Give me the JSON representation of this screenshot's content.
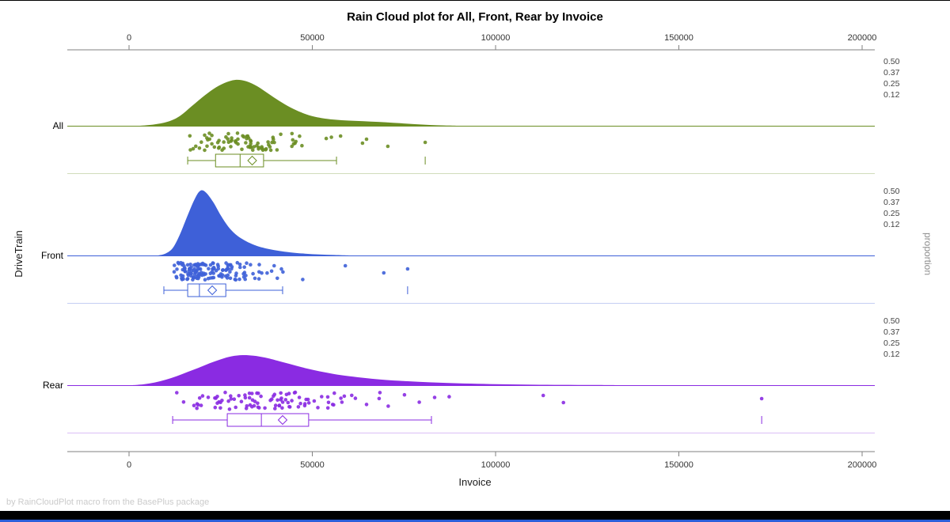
{
  "title": "Rain Cloud plot for All, Front, Rear by Invoice",
  "footer": "by RainCloudPlot macro from the BasePlus package",
  "window": {
    "background": "#FFFFFF",
    "bottom_bar_color": "#000000",
    "bottom_edge_color": "#2B5FD9"
  },
  "chart_data": {
    "type": "raincloud",
    "title": "Rain Cloud plot for All, Front, Rear by Invoice",
    "x_axis": {
      "label": "Invoice",
      "min": 0,
      "max": 200000,
      "ticks": [
        0,
        50000,
        100000,
        150000,
        200000
      ]
    },
    "y_axis": {
      "label": "DriveTrain",
      "categories": [
        "All",
        "Front",
        "Rear"
      ]
    },
    "proportion_axis": {
      "label": "proportion",
      "tick_labels": [
        "0.50",
        "0.37",
        "0.25",
        "0.12"
      ]
    },
    "axis_color": "#828282",
    "tick_label_color": "#333333",
    "legend": "none",
    "grid": false,
    "groups": [
      {
        "name": "All",
        "color": "#6B8E23",
        "n_points": 85,
        "seed": 7,
        "rain_range": [
          16000,
          57000
        ],
        "rain_outliers": [
          57700,
          63700,
          64800,
          70600,
          80800
        ],
        "box": {
          "whisker_low": 16000,
          "q1": 23600,
          "median": 30300,
          "q3": 36700,
          "whisker_high": 56600,
          "mean": 33600,
          "far_outliers": [
            80800
          ]
        },
        "density": [
          [
            3000,
            0
          ],
          [
            7000,
            0.03
          ],
          [
            11000,
            0.1
          ],
          [
            14000,
            0.22
          ],
          [
            17000,
            0.42
          ],
          [
            20000,
            0.62
          ],
          [
            23000,
            0.8
          ],
          [
            26000,
            0.93
          ],
          [
            29000,
            1.0
          ],
          [
            32000,
            0.97
          ],
          [
            35000,
            0.86
          ],
          [
            38000,
            0.7
          ],
          [
            41000,
            0.54
          ],
          [
            44000,
            0.4
          ],
          [
            47000,
            0.29
          ],
          [
            50000,
            0.21
          ],
          [
            54000,
            0.15
          ],
          [
            58000,
            0.12
          ],
          [
            62000,
            0.105
          ],
          [
            66000,
            0.09
          ],
          [
            70000,
            0.075
          ],
          [
            74000,
            0.055
          ],
          [
            78000,
            0.035
          ],
          [
            82000,
            0.018
          ],
          [
            86000,
            0.007
          ],
          [
            90000,
            0
          ]
        ]
      },
      {
        "name": "Front",
        "color": "#3E60D8",
        "n_points": 150,
        "seed": 13,
        "rain_range": [
          9500,
          49000
        ],
        "rain_outliers": [
          59000,
          69500,
          76000
        ],
        "box": {
          "whisker_low": 9500,
          "q1": 16000,
          "median": 19200,
          "q3": 26400,
          "whisker_high": 41900,
          "mean": 22700,
          "far_outliers": [
            76000
          ]
        },
        "density": [
          [
            8000,
            0
          ],
          [
            10000,
            0.03
          ],
          [
            12000,
            0.12
          ],
          [
            14000,
            0.34
          ],
          [
            16000,
            0.62
          ],
          [
            18000,
            0.88
          ],
          [
            19500,
            1.0
          ],
          [
            21000,
            0.97
          ],
          [
            23000,
            0.82
          ],
          [
            25000,
            0.62
          ],
          [
            27000,
            0.45
          ],
          [
            29000,
            0.33
          ],
          [
            31000,
            0.25
          ],
          [
            33000,
            0.19
          ],
          [
            35000,
            0.145
          ],
          [
            38000,
            0.1
          ],
          [
            41000,
            0.07
          ],
          [
            44000,
            0.048
          ],
          [
            48000,
            0.028
          ],
          [
            52000,
            0.015
          ],
          [
            56000,
            0.007
          ],
          [
            60000,
            0
          ]
        ]
      },
      {
        "name": "Rear",
        "color": "#8A2BE2",
        "n_points": 100,
        "seed": 21,
        "rain_range": [
          11500,
          89000
        ],
        "rain_outliers": [
          113000,
          118500,
          172600
        ],
        "box": {
          "whisker_low": 11900,
          "q1": 26800,
          "median": 36100,
          "q3": 49000,
          "whisker_high": 82500,
          "mean": 41900,
          "far_outliers": [
            172600
          ]
        },
        "density": [
          [
            1000,
            0
          ],
          [
            4000,
            0.03
          ],
          [
            7000,
            0.09
          ],
          [
            10000,
            0.18
          ],
          [
            13000,
            0.3
          ],
          [
            16000,
            0.44
          ],
          [
            19000,
            0.58
          ],
          [
            22000,
            0.73
          ],
          [
            25000,
            0.86
          ],
          [
            28000,
            0.96
          ],
          [
            31000,
            1.0
          ],
          [
            34000,
            0.98
          ],
          [
            37000,
            0.92
          ],
          [
            40000,
            0.83
          ],
          [
            44000,
            0.7
          ],
          [
            48000,
            0.57
          ],
          [
            52000,
            0.46
          ],
          [
            56000,
            0.37
          ],
          [
            60000,
            0.3
          ],
          [
            65000,
            0.23
          ],
          [
            70000,
            0.175
          ],
          [
            76000,
            0.13
          ],
          [
            82000,
            0.095
          ],
          [
            88000,
            0.068
          ],
          [
            95000,
            0.046
          ],
          [
            102000,
            0.03
          ],
          [
            110000,
            0.018
          ],
          [
            118000,
            0.01
          ],
          [
            127000,
            0.005
          ],
          [
            137000,
            0
          ]
        ]
      }
    ]
  }
}
